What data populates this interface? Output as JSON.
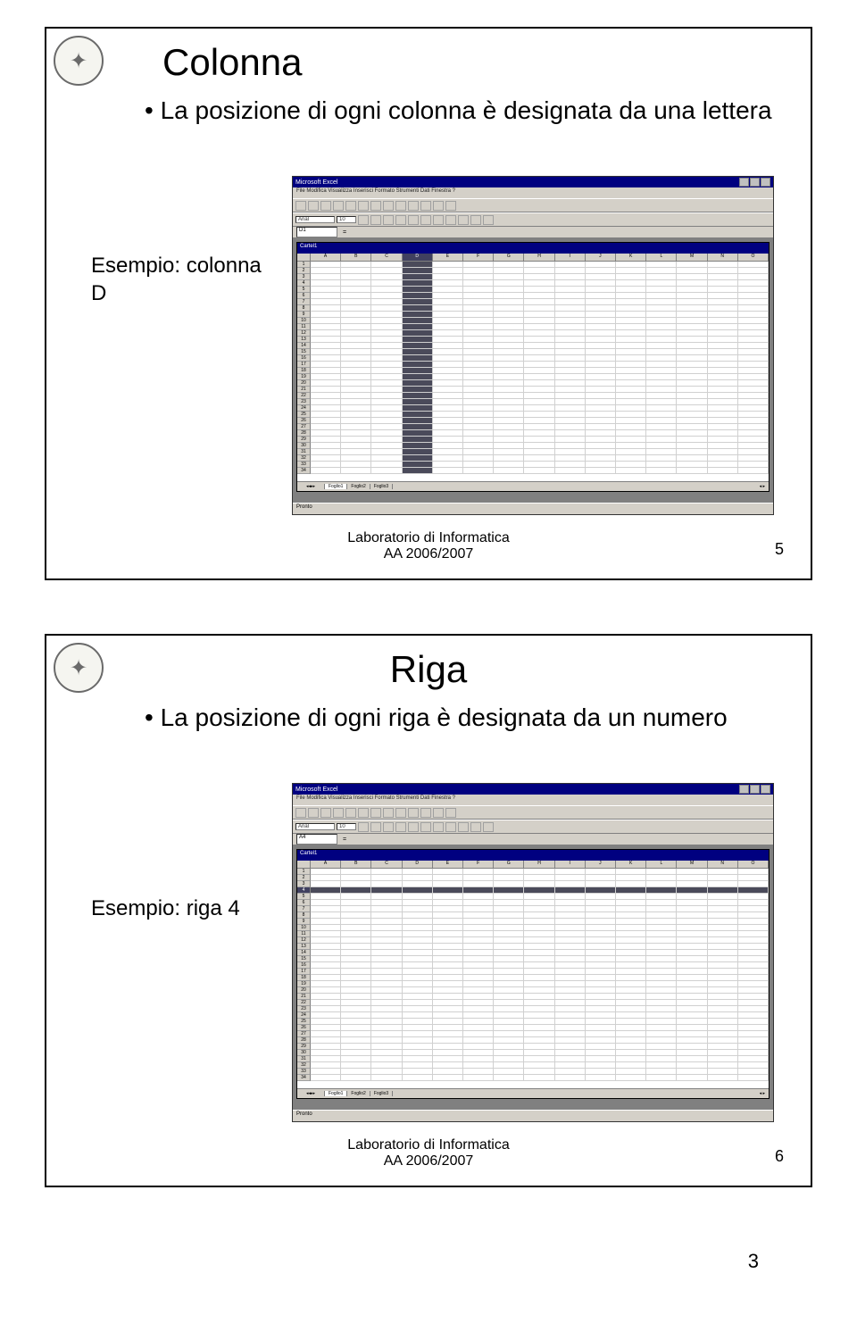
{
  "slide1": {
    "title": "Colonna",
    "bullet": "La posizione di ogni colonna è designata da una lettera",
    "example": "Esempio: colonna D",
    "footer_line1": "Laboratorio di Informatica",
    "footer_line2": "AA 2006/2007",
    "slide_number": "5",
    "excel": {
      "app_title": "Microsoft Excel",
      "menu": "File Modifica Visualizza Inserisci Formato Strumenti Dati Finestra ?",
      "namebox": "D1",
      "workbook_title": "Cartel1",
      "columns": [
        "A",
        "B",
        "C",
        "D",
        "E",
        "F",
        "G",
        "H",
        "I",
        "J",
        "K",
        "L",
        "M",
        "N",
        "O"
      ],
      "selected_column_index": 3,
      "row_count": 34,
      "selected_row_index": -1,
      "tabs": [
        "Foglio1",
        "Foglio2",
        "Foglio3"
      ],
      "status": "Pronto"
    }
  },
  "slide2": {
    "title": "Riga",
    "bullet": "La posizione di ogni riga è designata da un numero",
    "example": "Esempio: riga 4",
    "footer_line1": "Laboratorio di Informatica",
    "footer_line2": "AA 2006/2007",
    "slide_number": "6",
    "excel": {
      "app_title": "Microsoft Excel",
      "menu": "File Modifica Visualizza Inserisci Formato Strumenti Dati Finestra ?",
      "namebox": "A4",
      "workbook_title": "Cartel1",
      "columns": [
        "A",
        "B",
        "C",
        "D",
        "E",
        "F",
        "G",
        "H",
        "I",
        "J",
        "K",
        "L",
        "M",
        "N",
        "O"
      ],
      "selected_column_index": -1,
      "row_count": 34,
      "selected_row_index": 3,
      "tabs": [
        "Foglio1",
        "Foglio2",
        "Foglio3"
      ],
      "status": "Pronto"
    }
  },
  "handout_page_number": "3",
  "colors": {
    "titlebar": "#000080",
    "ui_gray": "#d4d0c8",
    "selection": "#4a4a5a"
  }
}
